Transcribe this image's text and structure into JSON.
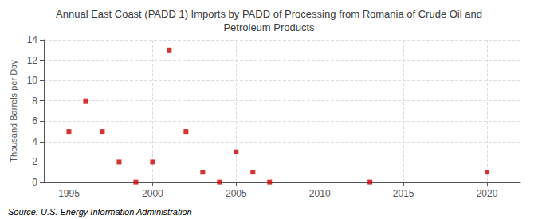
{
  "chart_data": {
    "type": "scatter",
    "title": "Annual East Coast (PADD 1) Imports by PADD of Processing from Romania of Crude Oil and\nPetroleum Products",
    "ylabel": "Thousand Barrels per Day",
    "annotations": [
      "Source: U.S. Energy Information Administration"
    ],
    "x": [
      1995,
      1996,
      1997,
      1998,
      1999,
      2000,
      2001,
      2002,
      2003,
      2004,
      2005,
      2006,
      2007,
      2013,
      2020
    ],
    "values": [
      5,
      8,
      5,
      2,
      0.03,
      2,
      13,
      5,
      1,
      0.03,
      3,
      1,
      0.03,
      0.03,
      1
    ],
    "color": "#cc0000",
    "marker": "square",
    "xlim": [
      1993.5,
      2022
    ],
    "xticks": [
      1995,
      2000,
      2005,
      2010,
      2015,
      2020
    ],
    "ylim": [
      0,
      14
    ],
    "yticks": [
      0,
      2,
      4,
      6,
      8,
      10,
      12,
      14
    ],
    "grid": true
  }
}
